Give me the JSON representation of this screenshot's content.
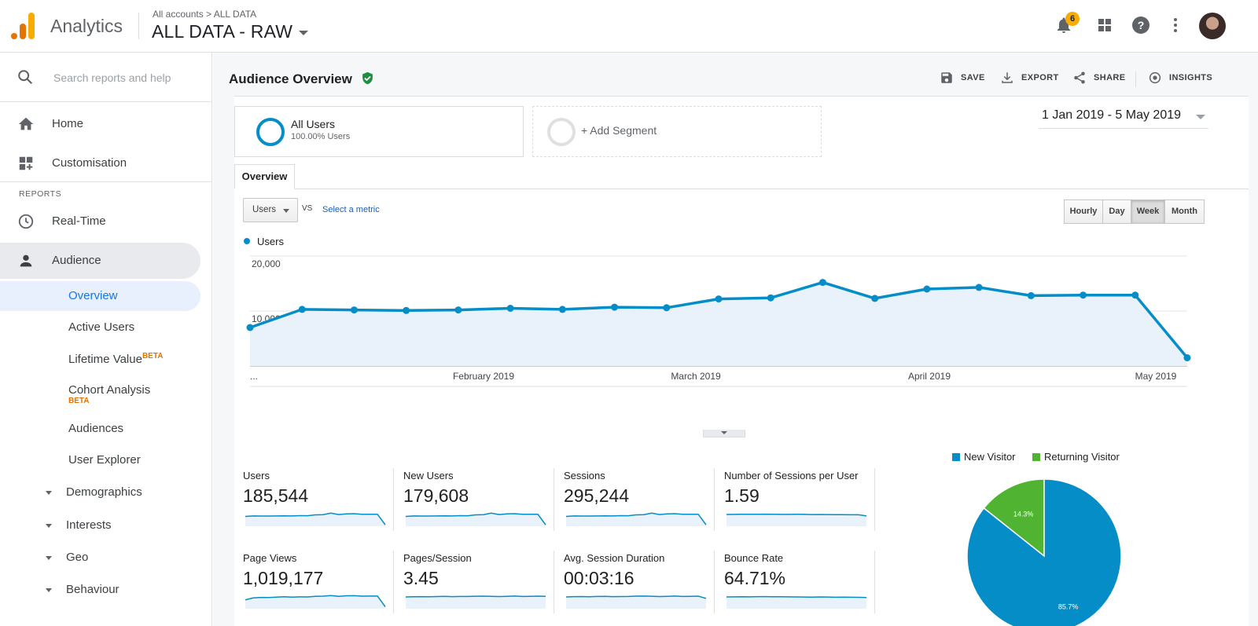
{
  "header": {
    "app_name": "Analytics",
    "breadcrumb": "All accounts > ALL DATA",
    "view_name": "ALL DATA - RAW",
    "notification_count": "6",
    "icons": [
      "bell-icon",
      "apps-grid-icon",
      "help-icon",
      "more-vert-icon",
      "avatar"
    ]
  },
  "sidebar": {
    "search_placeholder": "Search reports and help",
    "top_items": [
      {
        "label": "Home",
        "icon": "home-icon"
      },
      {
        "label": "Customisation",
        "icon": "customisation-icon"
      }
    ],
    "reports_label": "REPORTS",
    "report_items": [
      {
        "label": "Real-Time",
        "icon": "clock-icon"
      },
      {
        "label": "Audience",
        "icon": "person-icon"
      }
    ],
    "audience_sub": [
      {
        "label": "Overview",
        "active": true
      },
      {
        "label": "Active Users"
      },
      {
        "label": "Lifetime Value",
        "badge": "BETA"
      },
      {
        "label": "Cohort Analysis",
        "badge": "BETA"
      },
      {
        "label": "Audiences"
      },
      {
        "label": "User Explorer"
      }
    ],
    "groups": [
      "Demographics",
      "Interests",
      "Geo",
      "Behaviour"
    ]
  },
  "toolbar": {
    "title": "Audience Overview",
    "save": "SAVE",
    "export": "EXPORT",
    "share": "SHARE",
    "insights": "INSIGHTS"
  },
  "segments": {
    "all_users": "All Users",
    "all_users_pct": "100.00% Users",
    "add_segment": "+ Add Segment"
  },
  "date_range": "1 Jan 2019 - 5 May 2019",
  "tabs": [
    "Overview"
  ],
  "metric": {
    "selected": "Users",
    "vs": "VS",
    "select_metric": "Select a metric",
    "granularity": [
      "Hourly",
      "Day",
      "Week",
      "Month"
    ],
    "active_granularity": "Week"
  },
  "colors": {
    "primary": "#058dc7",
    "secondary": "#50b432",
    "accent_orange": "#e37400"
  },
  "chart_data": [
    {
      "type": "area",
      "series": [
        {
          "name": "Users",
          "values": [
            7000,
            10300,
            10200,
            10100,
            10200,
            10500,
            10300,
            10700,
            10600,
            12200,
            12400,
            15200,
            12300,
            14000,
            14300,
            12800,
            12900,
            12900,
            1500
          ]
        }
      ],
      "x_tick_labels": [
        "...",
        "February 2019",
        "March 2019",
        "April 2019",
        "May 2019"
      ],
      "y_tick_labels": [
        "20,000",
        "10,000"
      ],
      "ylim": [
        0,
        20000
      ],
      "grid": true,
      "legend": "top-left"
    },
    {
      "type": "pie",
      "categories": [
        "New Visitor",
        "Returning Visitor"
      ],
      "values": [
        85.7,
        14.3
      ],
      "data_labels": [
        "85.7%",
        "14.3%"
      ],
      "legend": "top"
    }
  ],
  "summary": [
    {
      "label": "Users",
      "value": "185,544",
      "trend": [
        10,
        10.5,
        10.4,
        10.4,
        10.5,
        10.6,
        10.5,
        10.8,
        10.7,
        11.6,
        11.8,
        13.4,
        11.9,
        12.6,
        12.8,
        12.2,
        12.2,
        12.2,
        1.5
      ]
    },
    {
      "label": "New Users",
      "value": "179,608",
      "trend": [
        10,
        10.5,
        10.4,
        10.4,
        10.5,
        10.6,
        10.5,
        10.8,
        10.7,
        11.6,
        11.8,
        13.4,
        11.9,
        12.6,
        12.8,
        12.2,
        12.2,
        12.2,
        1.5
      ]
    },
    {
      "label": "Sessions",
      "value": "295,244",
      "trend": [
        10,
        10.5,
        10.4,
        10.4,
        10.5,
        10.6,
        10.5,
        10.8,
        10.7,
        11.6,
        11.8,
        13.4,
        11.9,
        12.6,
        12.8,
        12.2,
        12.2,
        12.2,
        1.5
      ]
    },
    {
      "label": "Number of Sessions per User",
      "value": "1.59",
      "trend": [
        12,
        12.1,
        12.2,
        12.2,
        12.2,
        12.3,
        12.2,
        12.1,
        12.1,
        12.2,
        12.1,
        11.9,
        12.0,
        11.9,
        11.8,
        11.8,
        11.7,
        11.7,
        10.5
      ]
    },
    {
      "label": "Page Views",
      "value": "1,019,177",
      "trend": [
        9,
        11,
        11.5,
        11.4,
        11.8,
        12.2,
        11.8,
        12.1,
        12.0,
        12.6,
        12.8,
        13.4,
        12.6,
        13.2,
        13.3,
        12.8,
        12.9,
        12.9,
        2
      ]
    },
    {
      "label": "Pages/Session",
      "value": "3.45",
      "trend": [
        12,
        12.2,
        12.3,
        12.2,
        12.4,
        12.6,
        12.3,
        12.5,
        12.5,
        12.7,
        12.8,
        12.6,
        12.4,
        12.6,
        12.9,
        12.5,
        12.6,
        12.8,
        12.6
      ]
    },
    {
      "label": "Avg. Session Duration",
      "value": "00:03:16",
      "trend": [
        12,
        12.3,
        12.4,
        12.2,
        12.5,
        12.6,
        12.3,
        12.4,
        12.5,
        12.8,
        12.9,
        12.7,
        12.4,
        12.6,
        12.9,
        12.5,
        12.6,
        12.8,
        10.5
      ]
    },
    {
      "label": "Bounce Rate",
      "value": "64.71%",
      "trend": [
        12,
        12.1,
        12.2,
        12.1,
        12.3,
        12.3,
        12.2,
        12.2,
        12.1,
        12.0,
        11.9,
        11.8,
        12.0,
        11.9,
        11.7,
        11.8,
        11.7,
        11.6,
        11.4
      ]
    }
  ]
}
